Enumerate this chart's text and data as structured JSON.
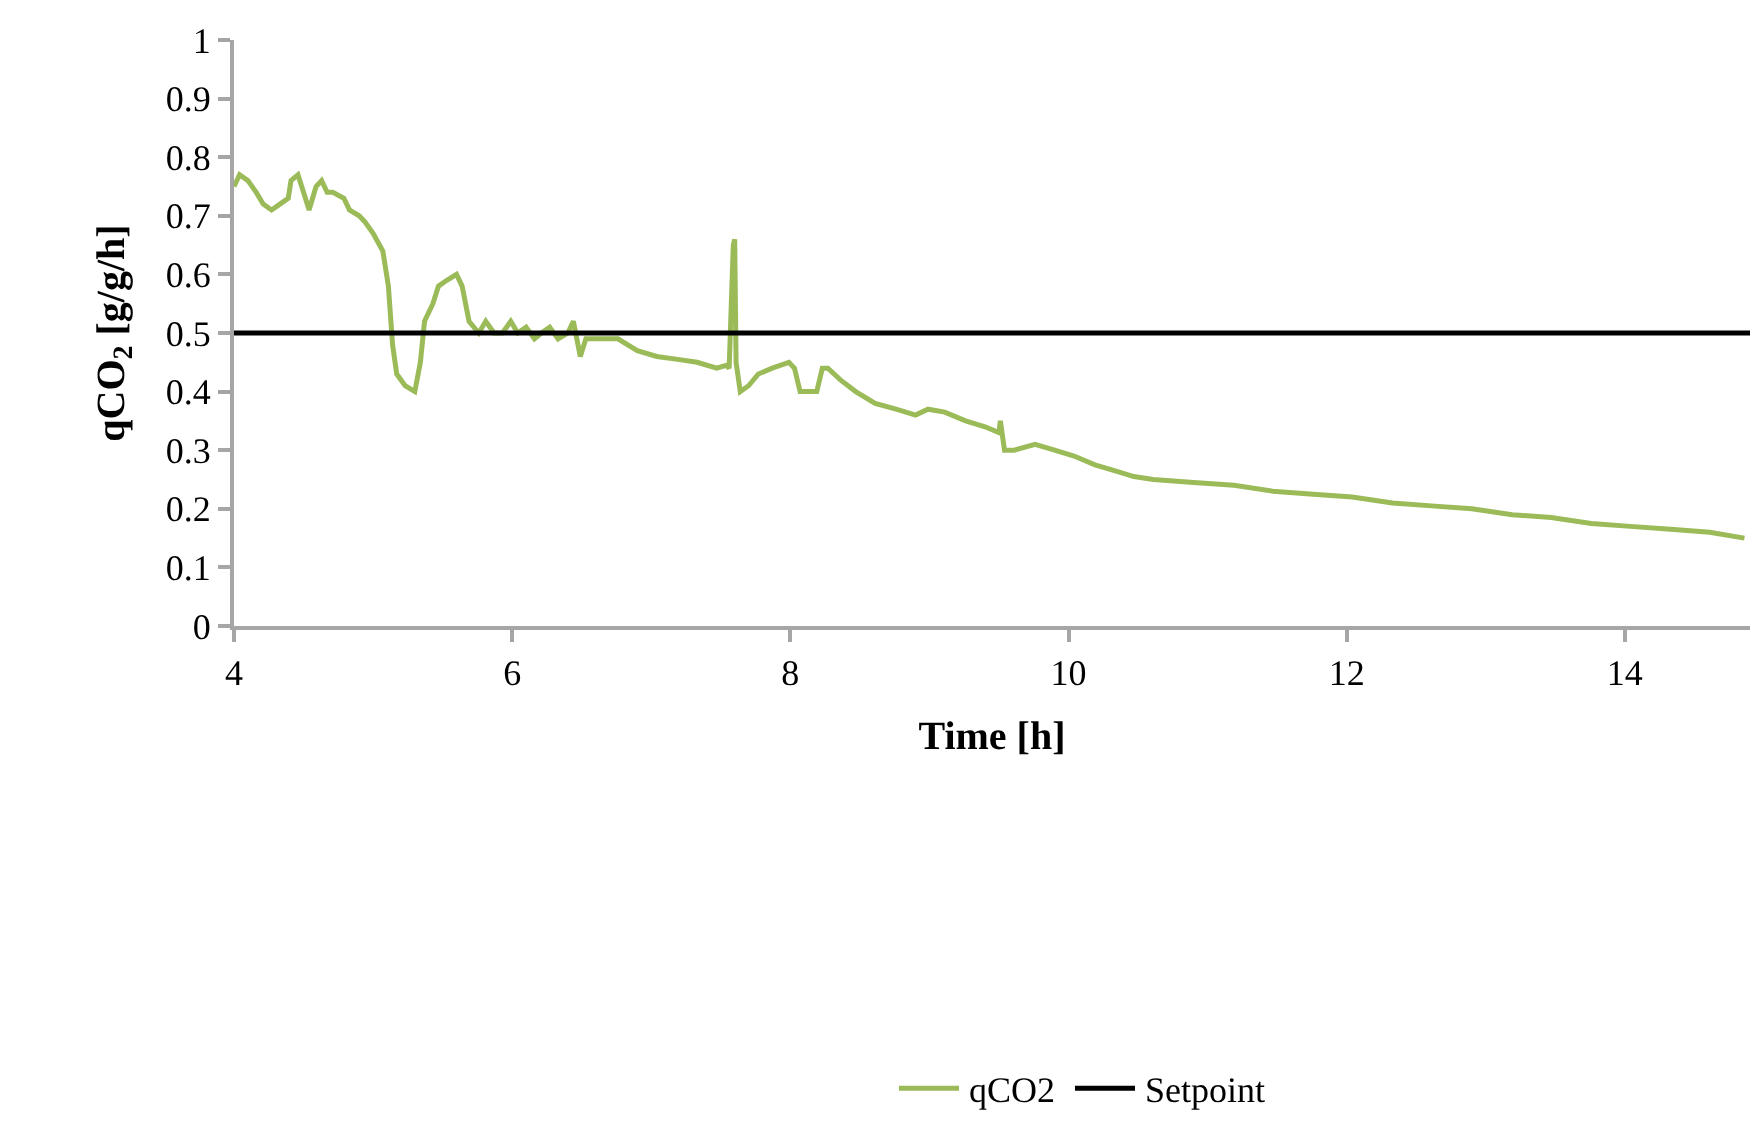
{
  "chart_data": {
    "type": "line",
    "xlabel": "Time [h]",
    "ylabel": "qCO$_{2}$ [g/g/h]",
    "xlim": [
      4,
      14.9
    ],
    "xticks": [
      4,
      6,
      8,
      10,
      12,
      14
    ],
    "ylim": [
      0,
      1
    ],
    "yticks": [
      0,
      0.1,
      0.2,
      0.3,
      0.4,
      0.5,
      0.6,
      0.7,
      0.8,
      0.9,
      1
    ],
    "legend": "bottom",
    "marker": "none",
    "line_style": "solid",
    "series": [
      {
        "name": "qCO2",
        "color": "#9bbb59",
        "x": [
          4.0,
          4.04,
          4.1,
          4.16,
          4.21,
          4.27,
          4.33,
          4.39,
          4.41,
          4.46,
          4.5,
          4.54,
          4.59,
          4.63,
          4.67,
          4.71,
          4.79,
          4.83,
          4.9,
          4.94,
          5.0,
          5.07,
          5.11,
          5.14,
          5.17,
          5.23,
          5.3,
          5.34,
          5.37,
          5.43,
          5.47,
          5.53,
          5.6,
          5.64,
          5.69,
          5.76,
          5.81,
          5.87,
          5.93,
          5.99,
          6.04,
          6.1,
          6.16,
          6.21,
          6.27,
          6.33,
          6.4,
          6.44,
          6.49,
          6.53,
          6.61,
          6.76,
          6.9,
          7.04,
          7.19,
          7.33,
          7.47,
          7.54,
          7.56,
          7.59,
          7.6,
          7.61,
          7.64,
          7.7,
          7.77,
          7.87,
          7.99,
          8.03,
          8.07,
          8.19,
          8.23,
          8.27,
          8.36,
          8.47,
          8.61,
          8.76,
          8.9,
          8.99,
          9.11,
          9.26,
          9.4,
          9.5,
          9.51,
          9.54,
          9.61,
          9.76,
          9.9,
          10.04,
          10.19,
          10.33,
          10.47,
          10.61,
          10.9,
          11.19,
          11.47,
          11.76,
          12.04,
          12.33,
          12.61,
          12.9,
          13.19,
          13.47,
          13.76,
          14.04,
          14.33,
          14.61,
          14.86
        ],
        "values": [
          0.75,
          0.77,
          0.76,
          0.74,
          0.72,
          0.71,
          0.72,
          0.73,
          0.76,
          0.77,
          0.74,
          0.71,
          0.75,
          0.76,
          0.74,
          0.74,
          0.73,
          0.71,
          0.7,
          0.69,
          0.67,
          0.64,
          0.58,
          0.48,
          0.43,
          0.41,
          0.4,
          0.45,
          0.52,
          0.55,
          0.58,
          0.59,
          0.6,
          0.58,
          0.52,
          0.5,
          0.52,
          0.5,
          0.5,
          0.52,
          0.5,
          0.51,
          0.49,
          0.5,
          0.51,
          0.49,
          0.5,
          0.52,
          0.46,
          0.49,
          0.49,
          0.49,
          0.47,
          0.46,
          0.455,
          0.45,
          0.44,
          0.445,
          0.44,
          0.65,
          0.66,
          0.45,
          0.4,
          0.41,
          0.43,
          0.44,
          0.45,
          0.44,
          0.4,
          0.4,
          0.44,
          0.44,
          0.42,
          0.4,
          0.38,
          0.37,
          0.36,
          0.37,
          0.365,
          0.35,
          0.34,
          0.33,
          0.35,
          0.3,
          0.3,
          0.31,
          0.3,
          0.29,
          0.275,
          0.265,
          0.255,
          0.25,
          0.245,
          0.24,
          0.23,
          0.225,
          0.22,
          0.21,
          0.205,
          0.2,
          0.19,
          0.185,
          0.175,
          0.17,
          0.165,
          0.16,
          0.15
        ]
      },
      {
        "name": "Setpoint",
        "color": "#000000",
        "x": [
          4,
          14.9
        ],
        "values": [
          0.5,
          0.5
        ]
      }
    ]
  }
}
